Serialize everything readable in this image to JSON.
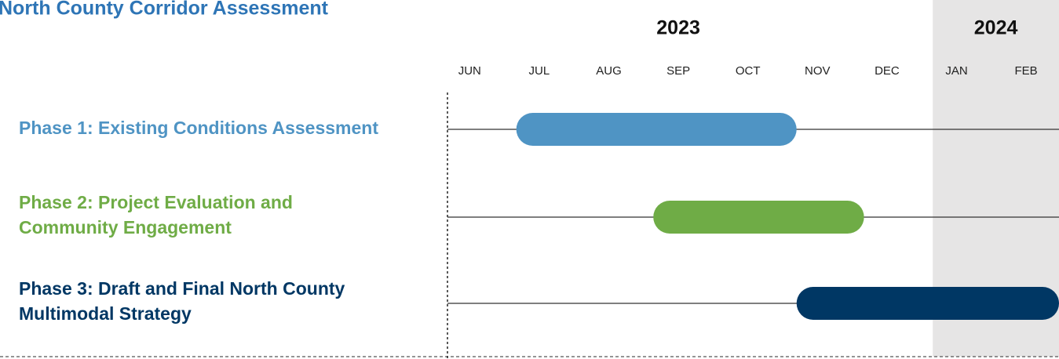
{
  "chart_data": {
    "type": "gantt",
    "title": "North County Corridor Assessment",
    "months": [
      "JUN",
      "JUL",
      "AUG",
      "SEP",
      "OCT",
      "NOV",
      "DEC",
      "JAN",
      "FEB"
    ],
    "years": [
      {
        "label": "2023",
        "start": 0,
        "end": 7,
        "shaded": false
      },
      {
        "label": "2024",
        "start": 7,
        "end": 9,
        "shaded": true
      }
    ],
    "xlim": [
      0,
      9
    ],
    "tasks": [
      {
        "lines": [
          "Phase  1: Existing Conditions Assessment"
        ],
        "start": 1.17,
        "end": 5.2,
        "color": "#4f94c4"
      },
      {
        "lines": [
          "Phase  2: Project Evaluation and",
          "Community Engagement"
        ],
        "start": 3.14,
        "end": 6.17,
        "color": "#6fac46"
      },
      {
        "lines": [
          "Phase 3: Draft and Final North County",
          "Multimodal Strategy"
        ],
        "start": 5.2,
        "end": 9,
        "color": "#003764"
      }
    ]
  }
}
